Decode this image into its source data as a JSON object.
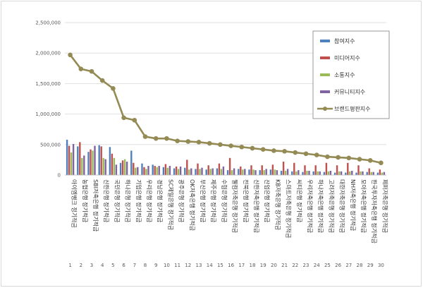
{
  "chart_data": {
    "type": "bar",
    "ylim": [
      0,
      2500000
    ],
    "yticks": [
      "0",
      "500,000",
      "1,000,000",
      "1,500,000",
      "2,000,000",
      "2,500,000"
    ],
    "ytick_values": [
      0,
      500000,
      1000000,
      1500000,
      2000000,
      2500000
    ],
    "grid": true,
    "legend_position": "top-right",
    "x_numbers": [
      "1",
      "2",
      "3",
      "4",
      "5",
      "6",
      "7",
      "8",
      "9",
      "10",
      "11",
      "12",
      "13",
      "14",
      "15",
      "16",
      "17",
      "18",
      "19",
      "20",
      "21",
      "22",
      "23",
      "24",
      "25",
      "26",
      "27",
      "28",
      "29",
      "30"
    ],
    "categories": [
      "아이엠뱅크 정기적금",
      "농협은행 정기적금",
      "SBI저축은행 정기적금",
      "신한은행 정기적금",
      "국민은행 정기적금",
      "하나은행 정기적금",
      "기업은행 정기적금",
      "우리은행 정기적금",
      "경남은행 정기적금",
      "SC제일은행 정기적금",
      "광주은행 정기적금",
      "OK저축은행 정기적금",
      "부산은행 정기적금",
      "제주은행 정기적금",
      "수협은행 정기적금",
      "웰컴저축은행 정기적금",
      "전북은행 정기적금",
      "신한저축은행 정기적금",
      "산업은행 정기적금",
      "KB저축은행 정기적금",
      "스마트저축은행 정기적금",
      "씨티은행 정기적금",
      "우리저축은행 정기적금",
      "하나저축은행 정기적금",
      "고려저축은행 정기적금",
      "대한저축은행 정기적금",
      "NH저축은행 정기적금",
      "모아저축은행 정기적금",
      "한국투자저축은행 정기적금",
      "페퍼저축은행 정기적금"
    ],
    "series": [
      {
        "name": "참여지수",
        "type": "bar",
        "color": "#4f81bd",
        "values": [
          580000,
          470000,
          380000,
          490000,
          460000,
          200000,
          400000,
          190000,
          170000,
          130000,
          110000,
          120000,
          100000,
          90000,
          110000,
          80000,
          100000,
          90000,
          80000,
          90000,
          70000,
          60000,
          50000,
          60000,
          50000,
          40000,
          40000,
          40000,
          50000,
          40000
        ]
      },
      {
        "name": "미디어지수",
        "type": "bar",
        "color": "#c0504d",
        "values": [
          480000,
          540000,
          420000,
          470000,
          350000,
          240000,
          200000,
          130000,
          150000,
          180000,
          140000,
          250000,
          190000,
          160000,
          190000,
          280000,
          140000,
          160000,
          160000,
          170000,
          220000,
          200000,
          160000,
          160000,
          200000,
          160000,
          200000,
          160000,
          110000,
          90000
        ]
      },
      {
        "name": "소통지수",
        "type": "bar",
        "color": "#9bbb59",
        "values": [
          370000,
          280000,
          400000,
          280000,
          280000,
          260000,
          120000,
          100000,
          130000,
          120000,
          100000,
          90000,
          100000,
          100000,
          100000,
          80000,
          90000,
          90000,
          80000,
          90000,
          70000,
          60000,
          70000,
          60000,
          60000,
          60000,
          60000,
          60000,
          50000,
          40000
        ]
      },
      {
        "name": "커뮤니티지수",
        "type": "bar",
        "color": "#8064a2",
        "values": [
          510000,
          320000,
          480000,
          260000,
          170000,
          220000,
          130000,
          150000,
          150000,
          150000,
          140000,
          110000,
          120000,
          110000,
          140000,
          110000,
          100000,
          80000,
          100000,
          80000,
          100000,
          80000,
          70000,
          60000,
          70000,
          60000,
          70000,
          60000,
          50000,
          50000
        ]
      },
      {
        "name": "브랜드평판지수",
        "type": "line",
        "color": "#948a54",
        "values": [
          1970000,
          1740000,
          1700000,
          1550000,
          1420000,
          940000,
          900000,
          630000,
          600000,
          600000,
          560000,
          550000,
          540000,
          520000,
          500000,
          480000,
          460000,
          440000,
          420000,
          400000,
          390000,
          370000,
          350000,
          330000,
          300000,
          290000,
          280000,
          260000,
          240000,
          200000
        ]
      }
    ]
  }
}
